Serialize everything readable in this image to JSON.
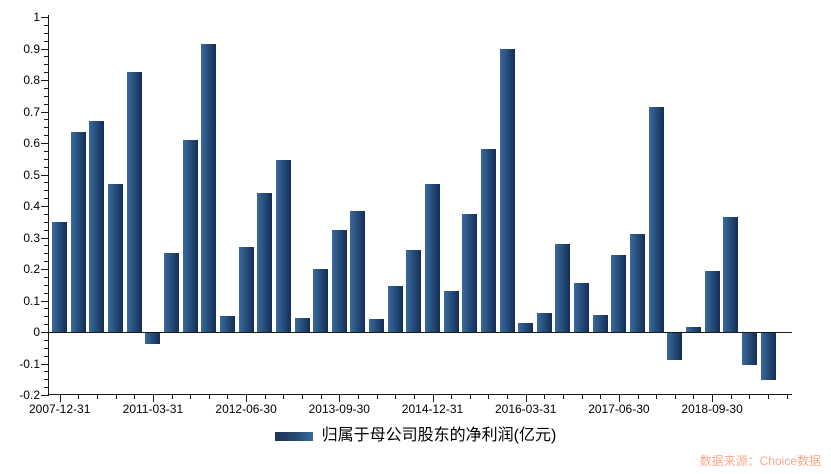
{
  "chart": {
    "legend_label": "归属于母公司股东的净利润(亿元)",
    "source_note": "数据来源：Choice数据",
    "colors": {
      "bar_gradient_left": "#3a6a9c",
      "bar_gradient_right": "#142c4f",
      "axis": "#1a1a1a",
      "label_text": "#000000",
      "source_text": "#f9a88a",
      "background": "#ffffff"
    }
  },
  "chart_data": {
    "type": "bar",
    "title": "",
    "series_name": "归属于母公司股东的净利润(亿元)",
    "ylabel": "",
    "xlabel": "",
    "ylim": [
      -0.2,
      1
    ],
    "y_tick_step": 0.1,
    "y_minor_tick_step": 0.025,
    "grid": false,
    "legend_position": "bottom-center",
    "y_tick_labels": [
      "1",
      "0.9",
      "0.8",
      "0.7",
      "0.6",
      "0.5",
      "0.4",
      "0.3",
      "0.2",
      "0.1",
      "0",
      "-0.1",
      "-0.2"
    ],
    "y_tick_values": [
      1,
      0.9,
      0.8,
      0.7,
      0.6,
      0.5,
      0.4,
      0.3,
      0.2,
      0.1,
      0,
      -0.1,
      -0.2
    ],
    "x_tick_labels": [
      "2007-12-31",
      "2011-03-31",
      "2012-06-30",
      "2013-09-30",
      "2014-12-31",
      "2016-03-31",
      "2017-06-30",
      "2018-09-30"
    ],
    "x_tick_bar_indices": [
      0,
      5,
      10,
      15,
      20,
      25,
      30,
      35
    ],
    "n_bars": 39,
    "values": [
      0.35,
      0.635,
      0.67,
      0.47,
      0.825,
      -0.035,
      0.25,
      0.61,
      0.915,
      0.05,
      0.27,
      0.44,
      0.545,
      0.045,
      0.2,
      0.325,
      0.385,
      0.04,
      0.145,
      0.26,
      0.47,
      0.13,
      0.375,
      0.58,
      0.9,
      0.03,
      0.06,
      0.28,
      0.155,
      0.055,
      0.245,
      0.31,
      0.715,
      -0.085,
      0.015,
      0.195,
      0.365,
      -0.1,
      -0.15
    ]
  }
}
